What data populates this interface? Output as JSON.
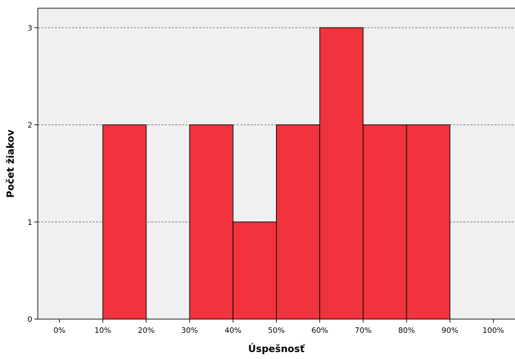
{
  "chart_data": {
    "type": "bar",
    "title": "",
    "xlabel": "Úspešnosť",
    "ylabel": "Počet žiakov",
    "x_ticks": [
      "0%",
      "10%",
      "20%",
      "30%",
      "40%",
      "50%",
      "60%",
      "70%",
      "80%",
      "90%",
      "100%"
    ],
    "y_ticks": [
      "0",
      "1",
      "2",
      "3"
    ],
    "bins": [
      {
        "from": 0,
        "to": 10,
        "value": 0
      },
      {
        "from": 10,
        "to": 20,
        "value": 2
      },
      {
        "from": 20,
        "to": 30,
        "value": 0
      },
      {
        "from": 30,
        "to": 40,
        "value": 2
      },
      {
        "from": 40,
        "to": 50,
        "value": 1
      },
      {
        "from": 50,
        "to": 60,
        "value": 2
      },
      {
        "from": 60,
        "to": 70,
        "value": 3
      },
      {
        "from": 70,
        "to": 80,
        "value": 2
      },
      {
        "from": 80,
        "to": 90,
        "value": 2
      },
      {
        "from": 90,
        "to": 100,
        "value": 0
      }
    ],
    "xlim": [
      -5,
      105
    ],
    "ylim": [
      0,
      3.2
    ],
    "grid": "horizontal dashed at y ticks",
    "legend": "none",
    "bar_color": "#f0333d",
    "bar_edge_color": "#000000",
    "plot_background": "#f0f0f0"
  }
}
